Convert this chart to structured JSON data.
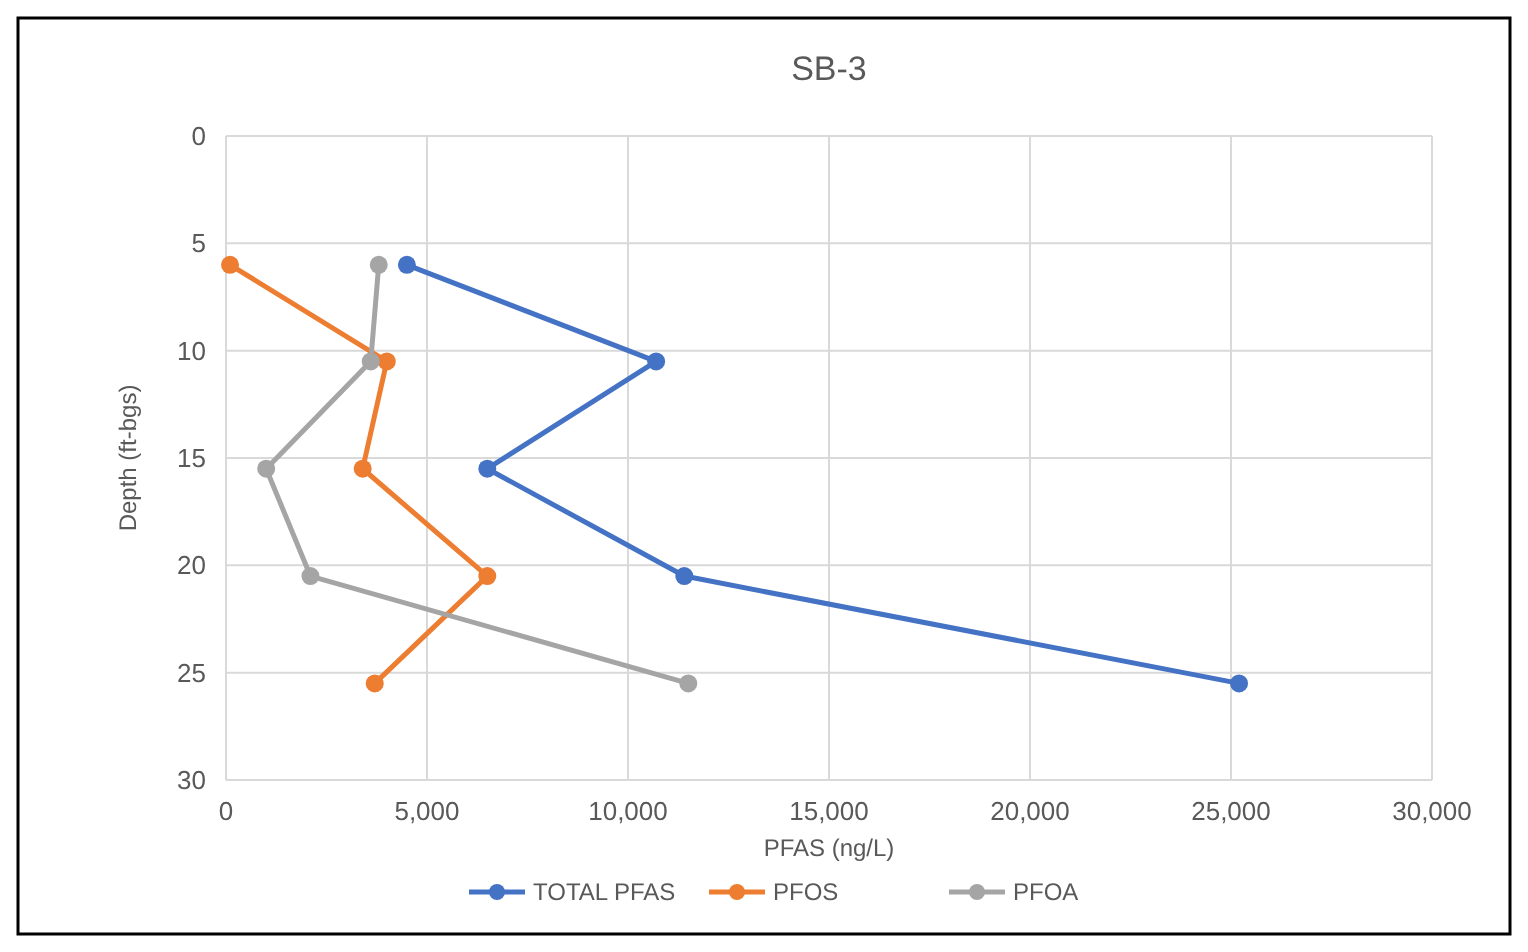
{
  "chart_data": {
    "type": "line",
    "title": "SB-3",
    "xlabel": "PFAS (ng/L)",
    "ylabel": "Depth (ft-bgs)",
    "xlim": [
      0,
      30000
    ],
    "xticks": [
      0,
      {
        "value": 5000,
        "label": "5,000"
      },
      {
        "value": 10000,
        "label": "10,000"
      },
      {
        "value": 15000,
        "label": "15,000"
      },
      {
        "value": 20000,
        "label": "20,000"
      },
      {
        "value": 25000,
        "label": "25,000"
      },
      {
        "value": 30000,
        "label": "30,000"
      }
    ],
    "ylim": [
      30,
      0
    ],
    "yticks": [
      0,
      5,
      10,
      15,
      20,
      25,
      30
    ],
    "grid": true,
    "legend": "bottom",
    "marker": "circle",
    "line_style": "solid",
    "series": [
      {
        "name": "TOTAL PFAS",
        "color": "#4472c4",
        "x": [
          4500,
          10700,
          6500,
          11400,
          25200
        ],
        "values": [
          6,
          10.5,
          15.5,
          20.5,
          25.5
        ]
      },
      {
        "name": "PFOS",
        "color": "#ed7d31",
        "x": [
          100,
          4000,
          3400,
          6500,
          3700
        ],
        "values": [
          6,
          10.5,
          15.5,
          20.5,
          25.5
        ]
      },
      {
        "name": "PFOA",
        "color": "#a5a5a5",
        "x": [
          3800,
          3600,
          1000,
          2100,
          11500
        ],
        "values": [
          6,
          10.5,
          15.5,
          20.5,
          25.5
        ]
      }
    ]
  }
}
